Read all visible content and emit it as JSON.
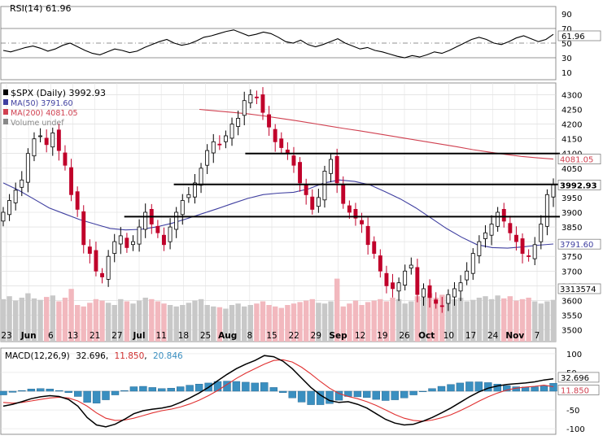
{
  "chart_data": [
    {
      "type": "line",
      "panel": "rsi",
      "title": "RSI(14) 61.96",
      "ylim": [
        0,
        100
      ],
      "yticks": [
        "90",
        "70",
        "50",
        "30",
        "10"
      ],
      "reference_lines": [
        70,
        50,
        30
      ],
      "current_value_label": "61.96",
      "series": [
        {
          "name": "RSI(14)",
          "color": "#000000",
          "values": [
            40,
            38,
            41,
            44,
            46,
            43,
            39,
            42,
            47,
            50,
            45,
            40,
            36,
            34,
            38,
            42,
            40,
            37,
            39,
            44,
            48,
            52,
            55,
            50,
            47,
            49,
            53,
            58,
            60,
            63,
            66,
            68,
            64,
            60,
            62,
            65,
            63,
            58,
            52,
            50,
            54,
            48,
            45,
            48,
            52,
            56,
            50,
            46,
            42,
            44,
            40,
            38,
            35,
            32,
            30,
            33,
            31,
            34,
            38,
            36,
            40,
            45,
            50,
            55,
            58,
            55,
            50,
            48,
            52,
            57,
            60,
            56,
            52,
            55,
            62
          ]
        }
      ]
    },
    {
      "type": "candlestick",
      "panel": "price",
      "title": "$SPX (Daily) 3992.93",
      "ylim": [
        3460,
        4340
      ],
      "yticks": [
        "4300",
        "4250",
        "4200",
        "4150",
        "4100",
        "4050",
        "4000",
        "3950",
        "3900",
        "3850",
        "3800",
        "3750",
        "3700",
        "3650",
        "3600",
        "3550",
        "3500"
      ],
      "x_tick_labels": [
        "23",
        "Jun",
        "6",
        "13",
        "21",
        "27",
        "Jul",
        "11",
        "18",
        "25",
        "Aug",
        "8",
        "15",
        "22",
        "29",
        "Sep",
        "12",
        "19",
        "26",
        "Oct",
        "10",
        "17",
        "24",
        "Nov",
        "7"
      ],
      "legend": [
        {
          "label": "$SPX (Daily) 3992.93",
          "color": "#000000"
        },
        {
          "label": "MA(50) 3791.60",
          "color": "#3f3fa0"
        },
        {
          "label": "MA(200) 4081.05",
          "color": "#d04050"
        },
        {
          "label": "Volume undef",
          "color": "#888888"
        }
      ],
      "price_labels": [
        {
          "text": "4081.05",
          "color": "#d04050"
        },
        {
          "text": "3992.93",
          "color": "#000000"
        },
        {
          "text": "3791.60",
          "color": "#3f3fa0"
        },
        {
          "text": "3313574",
          "color": "#000000"
        }
      ],
      "horizontal_lines": [
        {
          "value": 4100,
          "start": 0.44
        },
        {
          "value": 3995,
          "start": 0.31
        },
        {
          "value": 3885,
          "start": 0.22
        }
      ],
      "closes": [
        3900,
        3940,
        3975,
        4010,
        4100,
        4150,
        4160,
        4130,
        4170,
        4110,
        4060,
        3960,
        3910,
        3790,
        3760,
        3700,
        3680,
        3750,
        3800,
        3820,
        3780,
        3800,
        3850,
        3900,
        3860,
        3830,
        3790,
        3850,
        3900,
        3940,
        3960,
        4000,
        4050,
        4110,
        4140,
        4130,
        4160,
        4200,
        4220,
        4280,
        4300,
        4290,
        4240,
        4190,
        4140,
        4120,
        4100,
        4060,
        4000,
        3960,
        3910,
        3950,
        4040,
        4080,
        4000,
        3930,
        3900,
        3880,
        3860,
        3790,
        3760,
        3700,
        3650,
        3640,
        3660,
        3700,
        3720,
        3620,
        3640,
        3610,
        3590,
        3580,
        3620,
        3640,
        3660,
        3700,
        3760,
        3800,
        3830,
        3860,
        3900,
        3870,
        3830,
        3800,
        3760,
        3750,
        3790,
        3860,
        3960,
        3993
      ],
      "ma50": [
        4000,
        3975,
        3945,
        3915,
        3895,
        3875,
        3860,
        3845,
        3840,
        3842,
        3850,
        3862,
        3878,
        3895,
        3912,
        3930,
        3947,
        3960,
        3965,
        3968,
        3980,
        4000,
        4010,
        4005,
        3993,
        3970,
        3945,
        3915,
        3880,
        3845,
        3815,
        3790,
        3780,
        3778,
        3782,
        3788,
        3792
      ],
      "ma200": [
        4250,
        4245,
        4240,
        4235,
        4228,
        4220,
        4212,
        4203,
        4194,
        4185,
        4177,
        4168,
        4159,
        4150,
        4141,
        4132,
        4123,
        4113,
        4105,
        4097,
        4090,
        4085,
        4081
      ],
      "volume": [
        0.58,
        0.62,
        0.56,
        0.6,
        0.66,
        0.59,
        0.57,
        0.61,
        0.63,
        0.55,
        0.6,
        0.72,
        0.5,
        0.48,
        0.53,
        0.58,
        0.56,
        0.53,
        0.5,
        0.58,
        0.55,
        0.52,
        0.56,
        0.6,
        0.58,
        0.55,
        0.52,
        0.5,
        0.48,
        0.5,
        0.53,
        0.56,
        0.58,
        0.5,
        0.48,
        0.47,
        0.45,
        0.5,
        0.52,
        0.48,
        0.5,
        0.52,
        0.55,
        0.5,
        0.48,
        0.46,
        0.5,
        0.52,
        0.54,
        0.56,
        0.58,
        0.53,
        0.52,
        0.55,
        0.86,
        0.48,
        0.52,
        0.56,
        0.5,
        0.54,
        0.56,
        0.58,
        0.55,
        0.6,
        0.58,
        0.52,
        0.55,
        0.62,
        0.6,
        0.66,
        0.6,
        0.64,
        0.62,
        0.58,
        0.6,
        0.55,
        0.57,
        0.6,
        0.62,
        0.58,
        0.63,
        0.59,
        0.62,
        0.56,
        0.58,
        0.6,
        0.55,
        0.52,
        0.55,
        0.57
      ]
    },
    {
      "type": "line",
      "panel": "macd",
      "title": "MACD(12,26,9) 32.696, 11.850, 20.846",
      "title_parts": [
        "MACD(12,26,9)",
        "32.696",
        "11.850",
        "20.846"
      ],
      "ylim": [
        -115,
        115
      ],
      "yticks": [
        "100",
        "50",
        "0",
        "-50",
        "-100"
      ],
      "value_labels": [
        {
          "text": "32.696",
          "color": "#000000"
        },
        {
          "text": "11.850",
          "color": "#d04050"
        }
      ],
      "series": [
        {
          "name": "MACD",
          "color": "#000000",
          "values": [
            -40,
            -35,
            -28,
            -20,
            -15,
            -12,
            -14,
            -22,
            -40,
            -70,
            -90,
            -95,
            -88,
            -75,
            -60,
            -52,
            -48,
            -45,
            -40,
            -30,
            -18,
            -5,
            10,
            28,
            45,
            60,
            72,
            82,
            95,
            92,
            80,
            60,
            35,
            10,
            -10,
            -25,
            -30,
            -28,
            -35,
            -45,
            -60,
            -75,
            -85,
            -90,
            -88,
            -80,
            -70,
            -58,
            -45,
            -30,
            -15,
            -2,
            8,
            14,
            18,
            20,
            22,
            25,
            30,
            33
          ]
        },
        {
          "name": "Signal",
          "color": "#e03030",
          "values": [
            -30,
            -32,
            -30,
            -26,
            -22,
            -18,
            -16,
            -18,
            -26,
            -40,
            -58,
            -72,
            -78,
            -77,
            -72,
            -65,
            -58,
            -52,
            -48,
            -42,
            -34,
            -24,
            -12,
            2,
            18,
            34,
            48,
            60,
            72,
            82,
            84,
            78,
            64,
            46,
            26,
            8,
            -6,
            -14,
            -20,
            -28,
            -38,
            -50,
            -62,
            -72,
            -78,
            -80,
            -77,
            -71,
            -63,
            -52,
            -40,
            -27,
            -15,
            -5,
            3,
            8,
            11,
            13,
            16,
            12
          ]
        },
        {
          "name": "Histogram",
          "color": "#3a8fc0",
          "values": [
            -10,
            -3,
            2,
            6,
            7,
            6,
            2,
            -4,
            -14,
            -30,
            -32,
            -23,
            -10,
            2,
            12,
            13,
            10,
            7,
            8,
            12,
            16,
            19,
            22,
            26,
            27,
            26,
            24,
            22,
            23,
            10,
            -4,
            -18,
            -29,
            -36,
            -36,
            -33,
            -24,
            -14,
            -15,
            -17,
            -22,
            -25,
            -23,
            -18,
            -10,
            0,
            7,
            13,
            18,
            22,
            25,
            25,
            23,
            19,
            15,
            12,
            11,
            12,
            14,
            21
          ]
        }
      ]
    }
  ]
}
